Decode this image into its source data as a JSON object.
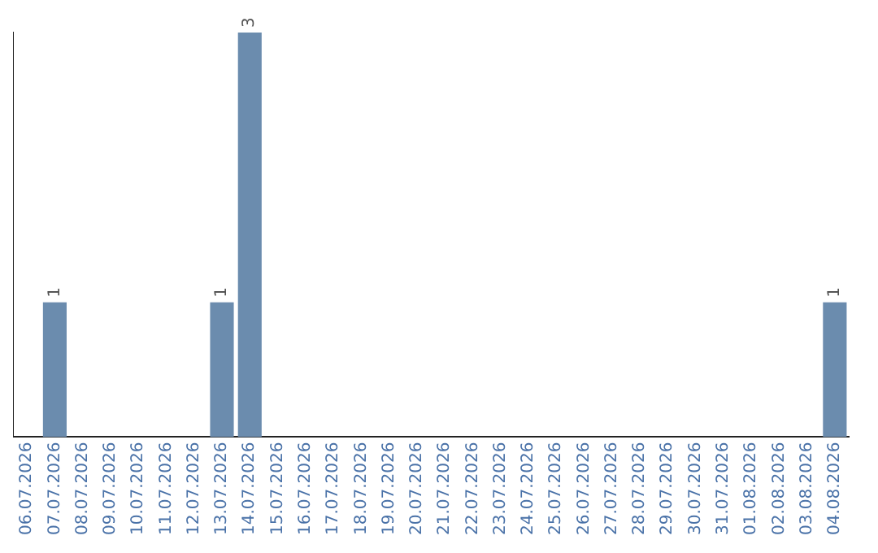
{
  "chart_data": {
    "type": "bar",
    "categories": [
      "06.07.2026",
      "07.07.2026",
      "08.07.2026",
      "09.07.2026",
      "10.07.2026",
      "11.07.2026",
      "12.07.2026",
      "13.07.2026",
      "14.07.2026",
      "15.07.2026",
      "16.07.2026",
      "17.07.2026",
      "18.07.2026",
      "19.07.2026",
      "20.07.2026",
      "21.07.2026",
      "22.07.2026",
      "23.07.2026",
      "24.07.2026",
      "25.07.2026",
      "26.07.2026",
      "27.07.2026",
      "28.07.2026",
      "29.07.2026",
      "30.07.2026",
      "31.07.2026",
      "01.08.2026",
      "02.08.2026",
      "03.08.2026",
      "04.08.2026"
    ],
    "values": [
      0,
      1,
      0,
      0,
      0,
      0,
      0,
      1,
      3,
      0,
      0,
      0,
      0,
      0,
      0,
      0,
      0,
      0,
      0,
      0,
      0,
      0,
      0,
      0,
      0,
      0,
      0,
      0,
      0,
      1
    ],
    "value_labels": [
      null,
      "1",
      null,
      null,
      null,
      null,
      null,
      "1",
      "3",
      null,
      null,
      null,
      null,
      null,
      null,
      null,
      null,
      null,
      null,
      null,
      null,
      null,
      null,
      null,
      null,
      null,
      null,
      null,
      null,
      "1"
    ],
    "color": "#6b8cae",
    "grid": false,
    "legend": false
  }
}
